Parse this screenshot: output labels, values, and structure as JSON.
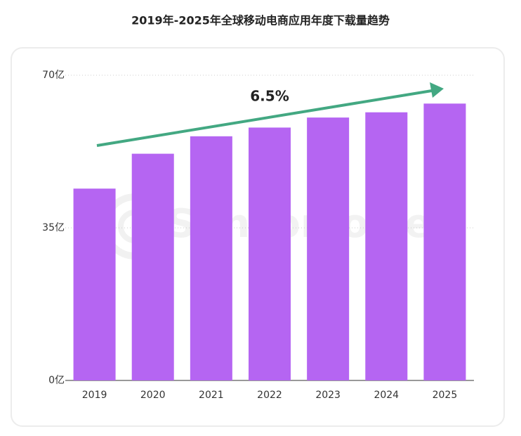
{
  "chart_data": {
    "type": "bar",
    "title": "2019年-2025年全球移动电商应用年度下载量趋势",
    "categories": [
      "2019",
      "2020",
      "2021",
      "2022",
      "2023",
      "2024",
      "2025"
    ],
    "values": [
      44,
      52,
      56,
      58,
      60.3,
      61.5,
      63.5
    ],
    "color": "#b565f2",
    "ylim": [
      0,
      70
    ],
    "yticks": [
      {
        "value": 0,
        "label": "0亿"
      },
      {
        "value": 35,
        "label": "35亿"
      },
      {
        "value": 70,
        "label": "70亿"
      }
    ],
    "grid": true,
    "annotation": "6.5%",
    "annotation_color": "#43a882",
    "watermark": "SensorTower"
  }
}
